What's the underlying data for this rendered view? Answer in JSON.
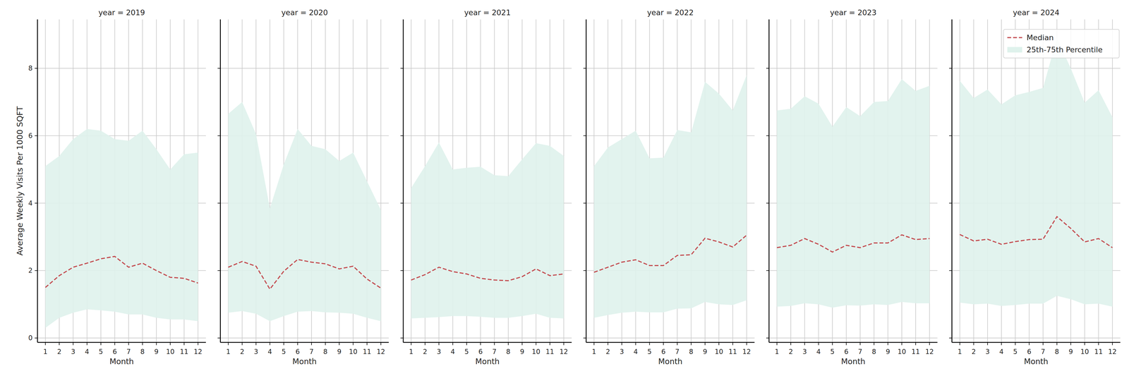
{
  "chart_data": [
    {
      "type": "line",
      "title": "year = 2019",
      "x_label": "Month",
      "y_label": "Average Weekly Visits Per 1000 SQFT",
      "x": [
        1,
        2,
        3,
        4,
        5,
        6,
        7,
        8,
        9,
        10,
        11,
        12
      ],
      "xlim": [
        0.43,
        12.57
      ],
      "xticks": [
        1,
        2,
        3,
        4,
        5,
        6,
        7,
        8,
        9,
        10,
        11,
        12
      ],
      "ylim": [
        -0.13,
        9.45
      ],
      "yticks": [
        0,
        2,
        4,
        6,
        8
      ],
      "grid": true,
      "tick_labels": true,
      "series": [
        {
          "color": "#c44e52",
          "line_style": "dashed",
          "values": [
            1.5,
            1.85,
            2.1,
            2.22,
            2.35,
            2.42,
            2.1,
            2.22,
            2.0,
            1.8,
            1.77,
            1.63
          ]
        },
        {
          "type": "band",
          "color": "#dff2ec",
          "low": [
            0.3,
            0.6,
            0.75,
            0.85,
            0.82,
            0.78,
            0.7,
            0.7,
            0.6,
            0.55,
            0.55,
            0.5
          ],
          "high": [
            5.1,
            5.4,
            5.9,
            6.2,
            6.15,
            5.9,
            5.85,
            6.15,
            5.6,
            5.0,
            5.45,
            5.5
          ]
        }
      ]
    },
    {
      "type": "line",
      "title": "year = 2020",
      "x_label": "Month",
      "x": [
        1,
        2,
        3,
        4,
        5,
        6,
        7,
        8,
        9,
        10,
        11,
        12
      ],
      "xlim": [
        0.43,
        12.57
      ],
      "xticks": [
        1,
        2,
        3,
        4,
        5,
        6,
        7,
        8,
        9,
        10,
        11,
        12
      ],
      "ylim": [
        -0.13,
        9.45
      ],
      "yticks": [
        0,
        2,
        4,
        6,
        8
      ],
      "grid": true,
      "tick_labels": "x",
      "series": [
        {
          "color": "#c44e52",
          "line_style": "dashed",
          "values": [
            2.1,
            2.27,
            2.13,
            1.45,
            1.98,
            2.33,
            2.25,
            2.2,
            2.05,
            2.13,
            1.75,
            1.48
          ]
        },
        {
          "type": "band",
          "color": "#dff2ec",
          "low": [
            0.75,
            0.8,
            0.72,
            0.5,
            0.65,
            0.78,
            0.8,
            0.76,
            0.75,
            0.72,
            0.6,
            0.5
          ],
          "high": [
            6.65,
            7.0,
            6.05,
            3.85,
            5.15,
            6.2,
            5.7,
            5.6,
            5.25,
            5.5,
            4.65,
            3.8
          ]
        }
      ]
    },
    {
      "type": "line",
      "title": "year = 2021",
      "x_label": "Month",
      "x": [
        1,
        2,
        3,
        4,
        5,
        6,
        7,
        8,
        9,
        10,
        11,
        12
      ],
      "xlim": [
        0.43,
        12.57
      ],
      "xticks": [
        1,
        2,
        3,
        4,
        5,
        6,
        7,
        8,
        9,
        10,
        11,
        12
      ],
      "ylim": [
        -0.13,
        9.45
      ],
      "yticks": [
        0,
        2,
        4,
        6,
        8
      ],
      "grid": true,
      "tick_labels": "x",
      "series": [
        {
          "color": "#c44e52",
          "line_style": "dashed",
          "values": [
            1.72,
            1.88,
            2.1,
            1.97,
            1.9,
            1.77,
            1.72,
            1.7,
            1.82,
            2.05,
            1.85,
            1.9
          ]
        },
        {
          "type": "band",
          "color": "#dff2ec",
          "low": [
            0.58,
            0.6,
            0.62,
            0.65,
            0.65,
            0.63,
            0.6,
            0.6,
            0.65,
            0.72,
            0.6,
            0.58
          ],
          "high": [
            4.45,
            5.1,
            5.8,
            5.0,
            5.05,
            5.08,
            4.83,
            4.8,
            5.3,
            5.78,
            5.7,
            5.4
          ]
        }
      ]
    },
    {
      "type": "line",
      "title": "year = 2022",
      "x_label": "Month",
      "x": [
        1,
        2,
        3,
        4,
        5,
        6,
        7,
        8,
        9,
        10,
        11,
        12
      ],
      "xlim": [
        0.43,
        12.57
      ],
      "xticks": [
        1,
        2,
        3,
        4,
        5,
        6,
        7,
        8,
        9,
        10,
        11,
        12
      ],
      "ylim": [
        -0.13,
        9.45
      ],
      "yticks": [
        0,
        2,
        4,
        6,
        8
      ],
      "grid": true,
      "tick_labels": "x",
      "series": [
        {
          "color": "#c44e52",
          "line_style": "dashed",
          "values": [
            1.95,
            2.1,
            2.25,
            2.32,
            2.15,
            2.15,
            2.45,
            2.47,
            2.96,
            2.85,
            2.7,
            3.05
          ]
        },
        {
          "type": "band",
          "color": "#dff2ec",
          "low": [
            0.6,
            0.68,
            0.75,
            0.78,
            0.76,
            0.76,
            0.87,
            0.88,
            1.07,
            1.0,
            0.98,
            1.12
          ],
          "high": [
            5.1,
            5.65,
            5.9,
            6.15,
            5.33,
            5.35,
            6.17,
            6.1,
            7.6,
            7.25,
            6.75,
            7.8
          ]
        }
      ]
    },
    {
      "type": "line",
      "title": "year = 2023",
      "x_label": "Month",
      "x": [
        1,
        2,
        3,
        4,
        5,
        6,
        7,
        8,
        9,
        10,
        11,
        12
      ],
      "xlim": [
        0.43,
        12.57
      ],
      "xticks": [
        1,
        2,
        3,
        4,
        5,
        6,
        7,
        8,
        9,
        10,
        11,
        12
      ],
      "ylim": [
        -0.13,
        9.45
      ],
      "yticks": [
        0,
        2,
        4,
        6,
        8
      ],
      "grid": true,
      "tick_labels": "x",
      "series": [
        {
          "color": "#c44e52",
          "line_style": "dashed",
          "values": [
            2.68,
            2.75,
            2.95,
            2.78,
            2.55,
            2.75,
            2.68,
            2.82,
            2.82,
            3.06,
            2.92,
            2.95
          ]
        },
        {
          "type": "band",
          "color": "#dff2ec",
          "low": [
            0.93,
            0.95,
            1.03,
            1.0,
            0.9,
            0.97,
            0.96,
            1.0,
            0.98,
            1.07,
            1.03,
            1.03
          ],
          "high": [
            6.75,
            6.8,
            7.17,
            6.95,
            6.27,
            6.85,
            6.58,
            7.0,
            7.03,
            7.68,
            7.33,
            7.48
          ]
        }
      ]
    },
    {
      "type": "line",
      "title": "year = 2024",
      "x_label": "Month",
      "x": [
        1,
        2,
        3,
        4,
        5,
        6,
        7,
        8,
        9,
        10,
        11,
        12
      ],
      "xlim": [
        0.43,
        12.57
      ],
      "xticks": [
        1,
        2,
        3,
        4,
        5,
        6,
        7,
        8,
        9,
        10,
        11,
        12
      ],
      "ylim": [
        -0.13,
        9.45
      ],
      "yticks": [
        0,
        2,
        4,
        6,
        8
      ],
      "grid": true,
      "tick_labels": "x",
      "legend": "upper right",
      "series": [
        {
          "name": "Median",
          "color": "#c44e52",
          "line_style": "dashed",
          "values": [
            3.07,
            2.88,
            2.93,
            2.78,
            2.86,
            2.92,
            2.93,
            3.6,
            3.25,
            2.85,
            2.95,
            2.68
          ]
        },
        {
          "name": "25th-75th Percentile",
          "type": "band",
          "color": "#dff2ec",
          "low": [
            1.05,
            1.0,
            1.02,
            0.95,
            0.98,
            1.02,
            1.02,
            1.25,
            1.15,
            1.0,
            1.02,
            0.93
          ],
          "high": [
            7.63,
            7.12,
            7.37,
            6.93,
            7.2,
            7.3,
            7.42,
            8.9,
            8.0,
            6.98,
            7.35,
            6.55
          ]
        }
      ]
    }
  ]
}
